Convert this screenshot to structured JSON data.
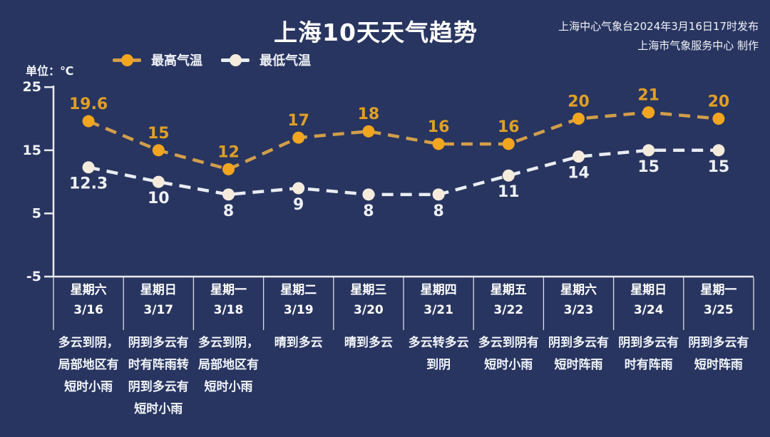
{
  "title": "上海10天天气趋势",
  "attribution": {
    "line1": "上海中心气象台2024年3月16日17时发布",
    "line2": "上海市气象服务中心 制作"
  },
  "unit_label": "单位：℃",
  "colors": {
    "background": "#283560",
    "axis": "#E9ECF2",
    "separator": "#D9DEE8",
    "high_accent": "#F2A51F",
    "low_accent": "#F5EBDC"
  },
  "chart_data": {
    "type": "line",
    "title": "上海10天天气趋势",
    "xlabel": "",
    "ylabel": "单位：℃",
    "ylim": [
      -5,
      25
    ],
    "yticks": [
      25,
      15,
      5,
      -5
    ],
    "grid": false,
    "legend_position": "top-left",
    "line_style": "dashed",
    "categories": [
      "3/16",
      "3/17",
      "3/18",
      "3/19",
      "3/20",
      "3/21",
      "3/22",
      "3/23",
      "3/24",
      "3/25"
    ],
    "series": [
      {
        "name": "最高气温",
        "values": [
          19.6,
          15,
          12,
          17,
          18,
          16,
          16,
          20,
          21,
          20
        ],
        "color": "#F2A51F",
        "line_color": "#D29E4A",
        "label_color": "#E09F27",
        "label_position": "above"
      },
      {
        "name": "最低气温",
        "values": [
          12.3,
          10,
          8,
          9,
          8,
          8,
          11,
          14,
          15,
          15
        ],
        "color": "#F5EBDC",
        "line_color": "#E9EDF2",
        "label_color": "#EDF0F6",
        "label_position": "below"
      }
    ]
  },
  "days": [
    {
      "weekday": "星期六",
      "date": "3/16",
      "forecast": "多云到阴，局部地区有短时小雨",
      "forecast_lines": [
        "多云到阴，",
        "局部地区有",
        "短时小雨"
      ]
    },
    {
      "weekday": "星期日",
      "date": "3/17",
      "forecast": "阴到多云有时有阵雨转阴到多云有短时小雨",
      "forecast_lines": [
        "阴到多云有",
        "时有阵雨转",
        "阴到多云有",
        "短时小雨"
      ]
    },
    {
      "weekday": "星期一",
      "date": "3/18",
      "forecast": "多云到阴，局部地区有短时小雨",
      "forecast_lines": [
        "多云到阴，",
        "局部地区有",
        "短时小雨"
      ]
    },
    {
      "weekday": "星期二",
      "date": "3/19",
      "forecast": "晴到多云",
      "forecast_lines": [
        "晴到多云"
      ]
    },
    {
      "weekday": "星期三",
      "date": "3/20",
      "forecast": "晴到多云",
      "forecast_lines": [
        "晴到多云"
      ]
    },
    {
      "weekday": "星期四",
      "date": "3/21",
      "forecast": "多云转多云到阴",
      "forecast_lines": [
        "多云转多云",
        "到阴"
      ]
    },
    {
      "weekday": "星期五",
      "date": "3/22",
      "forecast": "多云到阴有短时小雨",
      "forecast_lines": [
        "多云到阴有",
        "短时小雨"
      ]
    },
    {
      "weekday": "星期六",
      "date": "3/23",
      "forecast": "阴到多云有短时阵雨",
      "forecast_lines": [
        "阴到多云有",
        "短时阵雨"
      ]
    },
    {
      "weekday": "星期日",
      "date": "3/24",
      "forecast": "阴到多云有时有阵雨",
      "forecast_lines": [
        "阴到多云有",
        "时有阵雨"
      ]
    },
    {
      "weekday": "星期一",
      "date": "3/25",
      "forecast": "阴到多云有短时阵雨",
      "forecast_lines": [
        "阴到多云有",
        "短时阵雨"
      ]
    }
  ]
}
